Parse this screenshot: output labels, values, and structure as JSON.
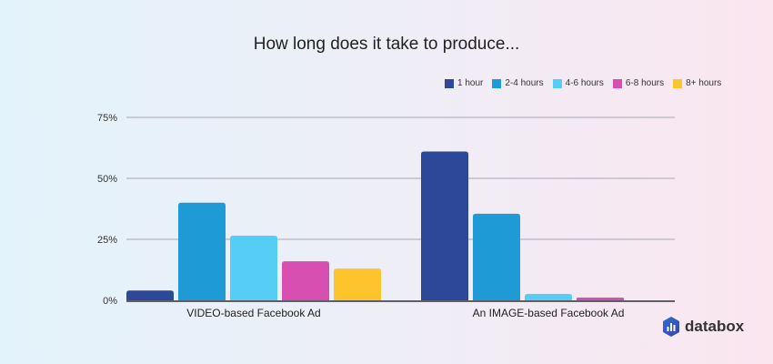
{
  "chart_data": {
    "type": "bar",
    "title": "How long does it take to produce...",
    "categories": [
      "VIDEO-based Facebook Ad",
      "An IMAGE-based Facebook Ad"
    ],
    "series": [
      {
        "name": "1 hour",
        "color": "#2d4898",
        "values": [
          4,
          61
        ]
      },
      {
        "name": "2-4 hours",
        "color": "#1e9bd7",
        "values": [
          40,
          35.5
        ]
      },
      {
        "name": "4-6 hours",
        "color": "#55cdf5",
        "values": [
          26.5,
          2.6
        ]
      },
      {
        "name": "6-8 hours",
        "color": "#d64fb1",
        "values": [
          16,
          1.1
        ]
      },
      {
        "name": "8+ hours",
        "color": "#fdc42e",
        "values": [
          13,
          0
        ]
      }
    ],
    "yticks": [
      "0%",
      "25%",
      "50%",
      "75%"
    ],
    "ytick_values": [
      0,
      25,
      50,
      75
    ],
    "ylim": [
      0,
      75
    ],
    "xlabel": "",
    "ylabel": "",
    "grid": true,
    "legend_position": "top-right"
  },
  "brand": {
    "name": "databox"
  }
}
